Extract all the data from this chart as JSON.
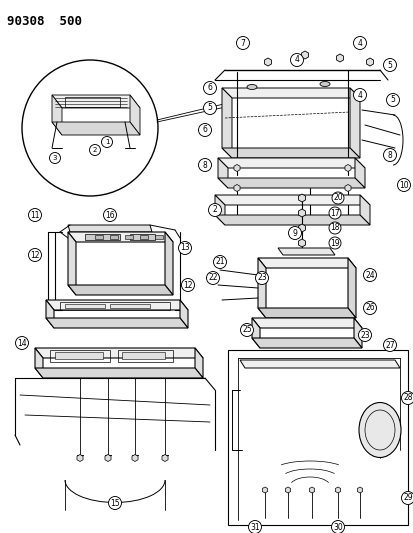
{
  "title": "90308  500",
  "bg": "#ffffff",
  "lc": "#000000",
  "figsize": [
    4.14,
    5.33
  ],
  "dpi": 100
}
